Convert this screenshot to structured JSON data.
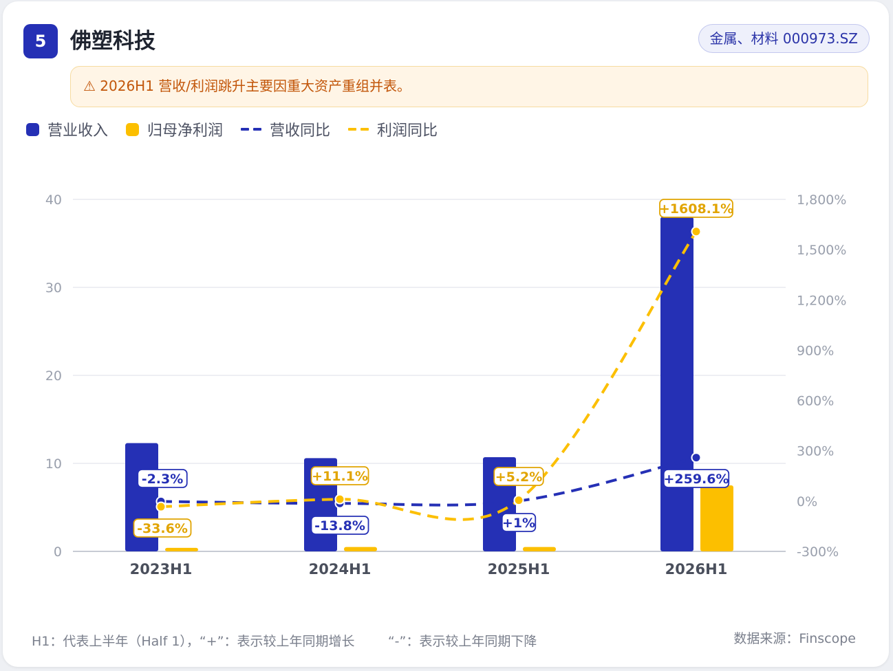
{
  "header": {
    "rank": "5",
    "title": "佛塑科技",
    "tag": "金属、材料 000973.SZ"
  },
  "warning": "⚠ 2026H1 营收/利润跳升主要因重大资产重组并表。",
  "legend": [
    {
      "label": "营业收入",
      "type": "bar",
      "color": "#2530b5"
    },
    {
      "label": "归母净利润",
      "type": "bar",
      "color": "#fcbf00"
    },
    {
      "label": "营收同比",
      "type": "dash",
      "color": "#2530b5"
    },
    {
      "label": "利润同比",
      "type": "dash",
      "color": "#fcbf00"
    }
  ],
  "colors": {
    "revenue": "#2530b5",
    "profit": "#fcbf00",
    "grid": "#e8eaef",
    "axis": "#9aa0ad"
  },
  "chart_data": {
    "type": "bar",
    "categories": [
      "2023H1",
      "2024H1",
      "2025H1",
      "2026H1"
    ],
    "y_left": {
      "ticks": [
        "0",
        "10",
        "20",
        "30",
        "40"
      ],
      "min": 0,
      "max": 40
    },
    "y_right": {
      "ticks": [
        "-300%",
        "0%",
        "300%",
        "600%",
        "900%",
        "1,200%",
        "1,500%",
        "1,800%"
      ],
      "min": -300,
      "max": 1800
    },
    "grid": true,
    "legend_position": "top-left",
    "series": [
      {
        "name": "营业收入",
        "type": "bar",
        "axis": "left",
        "values": [
          12.3,
          10.6,
          10.7,
          38.0
        ]
      },
      {
        "name": "归母净利润",
        "type": "bar",
        "axis": "left",
        "values": [
          0.4,
          0.5,
          0.5,
          7.5
        ]
      },
      {
        "name": "营收同比",
        "type": "line",
        "axis": "right",
        "values": [
          -2.3,
          -13.8,
          1,
          259.6
        ],
        "labels": [
          "-2.3%",
          "-13.8%",
          "+1%",
          "+259.6%"
        ]
      },
      {
        "name": "利润同比",
        "type": "line",
        "axis": "right",
        "values": [
          -33.6,
          11.1,
          5.2,
          1608.1
        ],
        "labels": [
          "-33.6%",
          "+11.1%",
          "+5.2%",
          "+1608.1%"
        ]
      }
    ]
  },
  "footnote": "H1：代表上半年（Half 1），“+”：表示较上年同期增长        “-”：表示较上年同期下降",
  "source": "数据来源：Finscope"
}
